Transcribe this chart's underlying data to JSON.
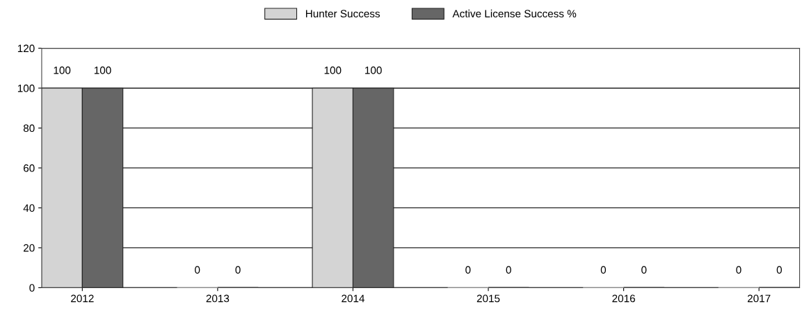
{
  "chart_data": {
    "type": "bar",
    "categories": [
      "2012",
      "2013",
      "2014",
      "2015",
      "2016",
      "2017"
    ],
    "series": [
      {
        "name": "Hunter Success",
        "color": "#d4d4d4",
        "values": [
          100,
          0,
          100,
          0,
          0,
          0
        ]
      },
      {
        "name": "Active License Success %",
        "color": "#666666",
        "values": [
          100,
          0,
          100,
          0,
          0,
          0
        ]
      }
    ],
    "ylim": [
      0,
      120
    ],
    "yticks": [
      0,
      20,
      40,
      60,
      80,
      100,
      120
    ],
    "grid": "y",
    "legend": "top",
    "data_labels": true
  }
}
